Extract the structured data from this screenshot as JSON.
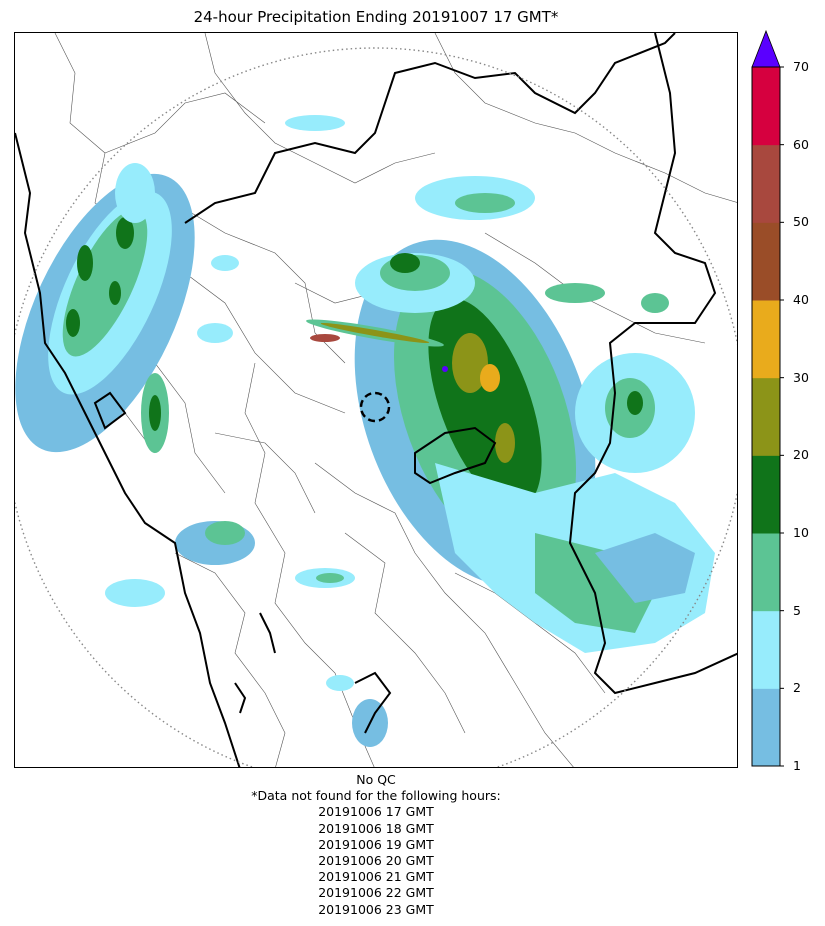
{
  "title": "24-hour Precipitation Ending 20191007 17 GMT*",
  "colorbar": {
    "labels": [
      "1",
      "2",
      "5",
      "10",
      "20",
      "30",
      "40",
      "50",
      "60",
      "70"
    ],
    "colors": [
      "#76bee2",
      "#97ecfc",
      "#5cc494",
      "#10741a",
      "#8c9418",
      "#e9ab1c",
      "#9a4d28",
      "#a8483e",
      "#d6003f"
    ],
    "extend_color": "#5a00ff"
  },
  "notes": {
    "qc": "No QC",
    "missing_header": "*Data not found for the following hours:",
    "missing_hours": [
      "20191006 17 GMT",
      "20191006 18 GMT",
      "20191006 19 GMT",
      "20191006 20 GMT",
      "20191006 21 GMT",
      "20191006 22 GMT",
      "20191006 23 GMT"
    ]
  }
}
